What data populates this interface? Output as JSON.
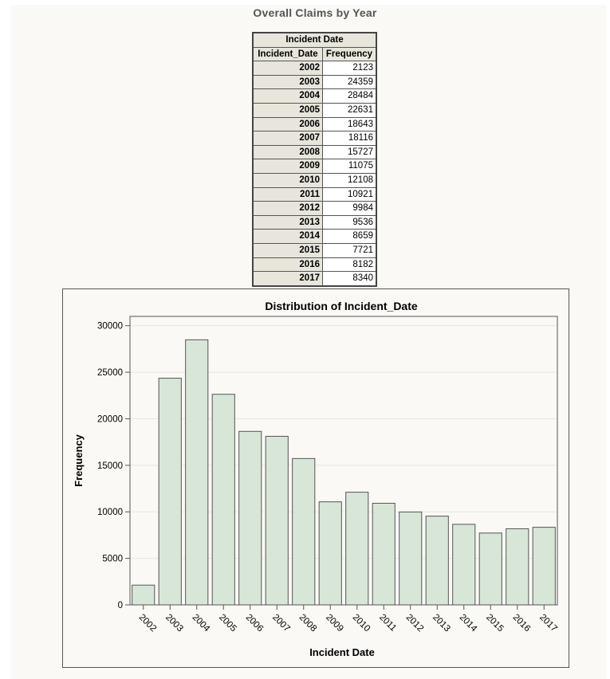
{
  "page_title": "Overall Claims by Year",
  "table": {
    "header": "Incident Date",
    "columns": [
      "Incident_Date",
      "Frequency"
    ],
    "rows": [
      {
        "year": "2002",
        "freq": "2123"
      },
      {
        "year": "2003",
        "freq": "24359"
      },
      {
        "year": "2004",
        "freq": "28484"
      },
      {
        "year": "2005",
        "freq": "22631"
      },
      {
        "year": "2006",
        "freq": "18643"
      },
      {
        "year": "2007",
        "freq": "18116"
      },
      {
        "year": "2008",
        "freq": "15727"
      },
      {
        "year": "2009",
        "freq": "11075"
      },
      {
        "year": "2010",
        "freq": "12108"
      },
      {
        "year": "2011",
        "freq": "10921"
      },
      {
        "year": "2012",
        "freq": "9984"
      },
      {
        "year": "2013",
        "freq": "9536"
      },
      {
        "year": "2014",
        "freq": "8659"
      },
      {
        "year": "2015",
        "freq": "7721"
      },
      {
        "year": "2016",
        "freq": "8182"
      },
      {
        "year": "2017",
        "freq": "8340"
      }
    ]
  },
  "chart_data": {
    "type": "bar",
    "title": "Distribution of Incident_Date",
    "xlabel": "Incident Date",
    "ylabel": "Frequency",
    "categories": [
      "2002",
      "2003",
      "2004",
      "2005",
      "2006",
      "2007",
      "2008",
      "2009",
      "2010",
      "2011",
      "2012",
      "2013",
      "2014",
      "2015",
      "2016",
      "2017"
    ],
    "values": [
      2123,
      24359,
      28484,
      22631,
      18643,
      18116,
      15727,
      11075,
      12108,
      10921,
      9984,
      9536,
      8659,
      7721,
      8182,
      8340
    ],
    "ylim": [
      0,
      30000
    ],
    "yticks": [
      0,
      5000,
      10000,
      15000,
      20000,
      25000,
      30000
    ],
    "grid": true,
    "bar_fill": "#d8e6d8",
    "bar_stroke": "#555555"
  }
}
